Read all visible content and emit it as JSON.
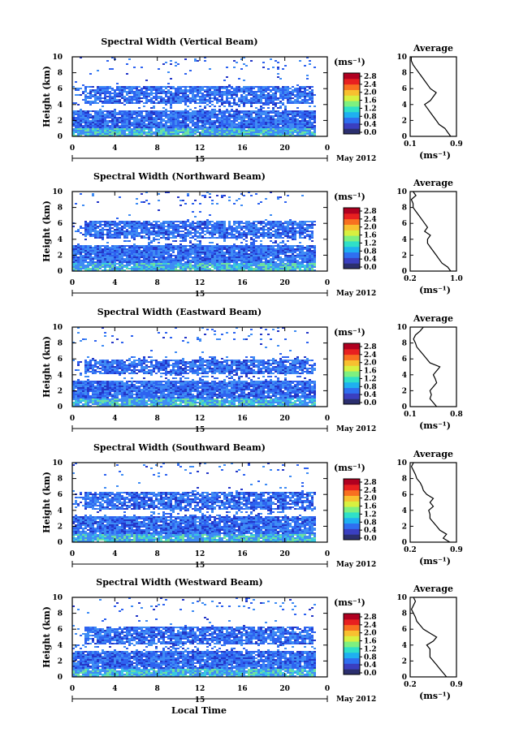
{
  "figure": {
    "xlabel_bottom": "Local Time",
    "date_label": "May 2012",
    "day_label": "15",
    "colorbar_unit": "(ms⁻¹)",
    "colorbar_ticks": [
      "0.0",
      "0.4",
      "0.8",
      "1.2",
      "1.6",
      "2.0",
      "2.4",
      "2.8"
    ],
    "colorbar_colors": [
      "#2b2f6e",
      "#3a3fc0",
      "#2f6ff0",
      "#1fb0f0",
      "#2fe0c8",
      "#7ef080",
      "#d8f040",
      "#f8c030",
      "#f87020",
      "#e82020",
      "#b00020"
    ],
    "height_label": "Height (km)",
    "avg_title": "Average",
    "avg_unit": "(ms⁻¹)",
    "pcolor_palette": {
      "deep": "#2437c8",
      "mid": "#2e63f0",
      "light": "#3f8cf4",
      "cyan": "#38c8e0",
      "green": "#6ee0a0"
    }
  },
  "chart_data": [
    {
      "type": "heatmap",
      "title": "Spectral Width (Vertical Beam)",
      "xlabel": "",
      "ylabel": "Height (km)",
      "xlim": [
        0,
        24
      ],
      "ylim": [
        0,
        10
      ],
      "xticks": [
        "0",
        "4",
        "8",
        "12",
        "16",
        "20",
        "0"
      ],
      "yticks": [
        "0",
        "2",
        "4",
        "6",
        "8",
        "10"
      ],
      "colorbar": {
        "label": "(ms⁻¹)",
        "range": [
          0.0,
          2.8
        ]
      },
      "average": {
        "title": "Average",
        "xlabel": "(ms⁻¹)",
        "xlim": [
          0.1,
          0.9
        ],
        "xticks": [
          "0.1",
          "0.9"
        ],
        "height": [
          0,
          0.5,
          1,
          1.5,
          2,
          2.5,
          3,
          3.5,
          4,
          4.5,
          5,
          5.5,
          6,
          6.5,
          7,
          7.5,
          8,
          8.5,
          9,
          9.5,
          10
        ],
        "values": [
          0.8,
          0.75,
          0.7,
          0.6,
          0.55,
          0.5,
          0.45,
          0.4,
          0.35,
          0.45,
          0.5,
          0.55,
          0.45,
          0.4,
          0.35,
          0.3,
          0.25,
          0.2,
          0.15,
          0.12,
          0.12
        ]
      }
    },
    {
      "type": "heatmap",
      "title": "Spectral Width (Northward Beam)",
      "xlabel": "",
      "ylabel": "Height (km)",
      "xlim": [
        0,
        24
      ],
      "ylim": [
        0,
        10
      ],
      "xticks": [
        "0",
        "4",
        "8",
        "12",
        "16",
        "20",
        "0"
      ],
      "yticks": [
        "0",
        "2",
        "4",
        "6",
        "8",
        "10"
      ],
      "colorbar": {
        "label": "(ms⁻¹)",
        "range": [
          0.0,
          2.8
        ]
      },
      "average": {
        "title": "Average",
        "xlabel": "(ms⁻¹)",
        "xlim": [
          0.2,
          1.0
        ],
        "xticks": [
          "0.2",
          "1.0"
        ],
        "height": [
          0,
          0.5,
          1,
          1.5,
          2,
          2.5,
          3,
          3.5,
          4,
          4.5,
          5,
          5.5,
          6,
          6.5,
          7,
          7.5,
          8,
          8.5,
          9,
          9.5,
          10
        ],
        "values": [
          0.9,
          0.85,
          0.75,
          0.7,
          0.65,
          0.6,
          0.55,
          0.5,
          0.5,
          0.55,
          0.45,
          0.5,
          0.45,
          0.4,
          0.35,
          0.3,
          0.25,
          0.25,
          0.22,
          0.3,
          0.25
        ]
      }
    },
    {
      "type": "heatmap",
      "title": "Spectral Width (Eastward Beam)",
      "xlabel": "",
      "ylabel": "Height (km)",
      "xlim": [
        0,
        24
      ],
      "ylim": [
        0,
        10
      ],
      "xticks": [
        "0",
        "4",
        "8",
        "12",
        "16",
        "20",
        "0"
      ],
      "yticks": [
        "0",
        "2",
        "4",
        "6",
        "8",
        "10"
      ],
      "colorbar": {
        "label": "(ms⁻¹)",
        "range": [
          0.0,
          2.8
        ]
      },
      "average": {
        "title": "Average",
        "xlabel": "(ms⁻¹)",
        "xlim": [
          0.1,
          0.8
        ],
        "xticks": [
          "0.1",
          "0.8"
        ],
        "height": [
          0,
          0.5,
          1,
          1.5,
          2,
          2.5,
          3,
          3.5,
          4,
          4.5,
          5,
          5.5,
          6,
          6.5,
          7,
          7.5,
          8,
          8.5,
          9,
          9.5,
          10
        ],
        "values": [
          0.5,
          0.45,
          0.4,
          0.42,
          0.4,
          0.45,
          0.5,
          0.48,
          0.45,
          0.5,
          0.55,
          0.4,
          0.35,
          0.3,
          0.25,
          0.2,
          0.18,
          0.15,
          0.18,
          0.25,
          0.3
        ]
      }
    },
    {
      "type": "heatmap",
      "title": "Spectral Width (Southward Beam)",
      "xlabel": "",
      "ylabel": "Height (km)",
      "xlim": [
        0,
        24
      ],
      "ylim": [
        0,
        10
      ],
      "xticks": [
        "0",
        "4",
        "8",
        "12",
        "16",
        "20",
        "0"
      ],
      "yticks": [
        "0",
        "2",
        "4",
        "6",
        "8",
        "10"
      ],
      "colorbar": {
        "label": "(ms⁻¹)",
        "range": [
          0.0,
          2.8
        ]
      },
      "average": {
        "title": "Average",
        "xlabel": "(ms⁻¹)",
        "xlim": [
          0.2,
          0.9
        ],
        "xticks": [
          "0.2",
          "0.9"
        ],
        "height": [
          0,
          0.5,
          1,
          1.5,
          2,
          2.5,
          3,
          3.5,
          4,
          4.5,
          5,
          5.5,
          6,
          6.5,
          7,
          7.5,
          8,
          8.5,
          9,
          9.5,
          10
        ],
        "values": [
          0.8,
          0.7,
          0.75,
          0.65,
          0.6,
          0.55,
          0.5,
          0.5,
          0.48,
          0.55,
          0.5,
          0.55,
          0.45,
          0.4,
          0.38,
          0.35,
          0.3,
          0.28,
          0.25,
          0.22,
          0.25
        ]
      }
    },
    {
      "type": "heatmap",
      "title": "Spectral Width (Westward Beam)",
      "xlabel": "Local Time",
      "ylabel": "Height (km)",
      "xlim": [
        0,
        24
      ],
      "ylim": [
        0,
        10
      ],
      "xticks": [
        "0",
        "4",
        "8",
        "12",
        "16",
        "20",
        "0"
      ],
      "yticks": [
        "0",
        "2",
        "4",
        "6",
        "8",
        "10"
      ],
      "colorbar": {
        "label": "(ms⁻¹)",
        "range": [
          0.0,
          2.8
        ]
      },
      "average": {
        "title": "Average",
        "xlabel": "(ms⁻¹)",
        "xlim": [
          0.2,
          0.9
        ],
        "xticks": [
          "0.2",
          "0.9"
        ],
        "height": [
          0,
          0.5,
          1,
          1.5,
          2,
          2.5,
          3,
          3.5,
          4,
          4.5,
          5,
          5.5,
          6,
          6.5,
          7,
          7.5,
          8,
          8.5,
          9,
          9.5,
          10
        ],
        "values": [
          0.75,
          0.7,
          0.65,
          0.6,
          0.55,
          0.5,
          0.5,
          0.5,
          0.45,
          0.55,
          0.6,
          0.5,
          0.4,
          0.35,
          0.3,
          0.28,
          0.25,
          0.22,
          0.25,
          0.28,
          0.25
        ]
      }
    }
  ]
}
